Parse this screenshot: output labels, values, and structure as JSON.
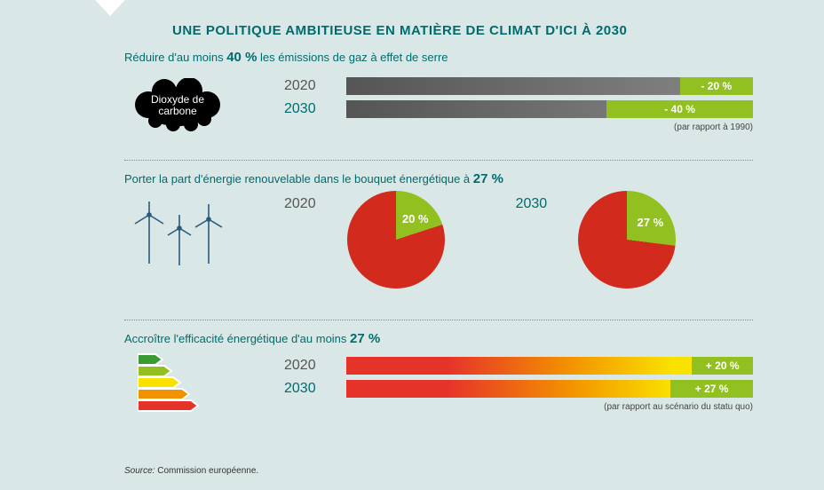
{
  "title": "UNE POLITIQUE AMBITIEUSE EN MATIÈRE DE CLIMAT D'ICI À 2030",
  "colors": {
    "background": "#d9e8e6",
    "teal": "#006b6e",
    "green": "#92c020",
    "red": "#d32a1e",
    "bar_grad_start": "#555555",
    "bar_grad_end": "#888888",
    "energy_grad": [
      "#e6332a",
      "#f39200",
      "#f9e100"
    ]
  },
  "section1": {
    "heading_pre": "Réduire d'au moins ",
    "heading_bold": "40 %",
    "heading_post": " les émissions de gaz à effet de serre",
    "cloud_label": "Dioxyde de carbone",
    "rows": [
      {
        "year": "2020",
        "reduction_label": "- 20 %",
        "reduction_pct": 20,
        "active": false
      },
      {
        "year": "2030",
        "reduction_label": "- 40 %",
        "reduction_pct": 40,
        "active": true
      }
    ],
    "note": "(par rapport à 1990)"
  },
  "section2": {
    "heading_pre": "Porter la part d'énergie renouvelable dans le bouquet énergétique à ",
    "heading_bold": "27 %",
    "pies": [
      {
        "year": "2020",
        "share_pct": 20,
        "label": "20 %",
        "active": false
      },
      {
        "year": "2030",
        "share_pct": 27,
        "label": "27 %",
        "active": true
      }
    ],
    "pie_colors": {
      "slice": "#92c020",
      "rest": "#d32a1e"
    }
  },
  "section3": {
    "heading_pre": "Accroître l'efficacité énergétique d'au moins ",
    "heading_bold": "27 %",
    "rows": [
      {
        "year": "2020",
        "gain_label": "+ 20 %",
        "gain_pct": 20,
        "active": false
      },
      {
        "year": "2030",
        "gain_label": "+ 27 %",
        "gain_pct": 27,
        "active": true
      }
    ],
    "note": "(par rapport au scénario du statu quo)"
  },
  "source": {
    "label": "Source:",
    "text": "Commission européenne."
  }
}
